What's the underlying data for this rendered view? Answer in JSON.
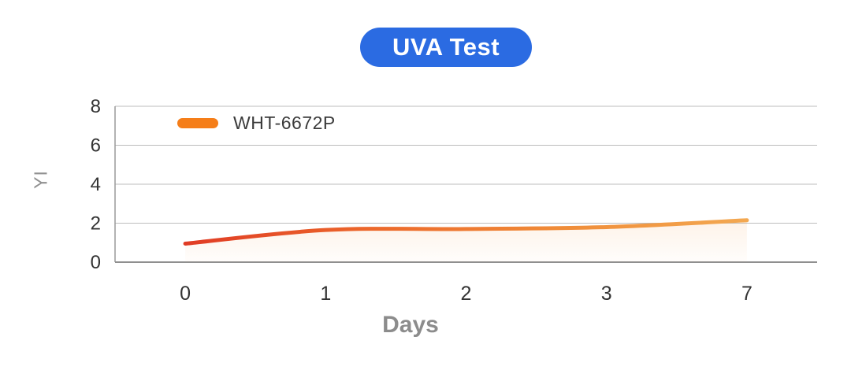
{
  "title": {
    "label": "UVA Test",
    "bg_color": "#2B6BE2",
    "text_color": "#FFFFFF"
  },
  "legend": {
    "series_label": "WHT-6672P",
    "swatch_color": "#F57E19",
    "position": "top-left-inside"
  },
  "axes": {
    "y_label": "YI",
    "x_label": "Days"
  },
  "chart_data": {
    "type": "line",
    "title": "UVA Test",
    "xlabel": "Days",
    "ylabel": "YI",
    "categories": [
      "0",
      "1",
      "2",
      "3",
      "7"
    ],
    "series": [
      {
        "name": "WHT-6672P",
        "values": [
          0.95,
          1.65,
          1.7,
          1.8,
          2.15
        ]
      }
    ],
    "ylim": [
      0,
      8
    ],
    "yticks": [
      0,
      2,
      4,
      6,
      8
    ],
    "grid": "horizontal",
    "x_axis_type": "categorical-evenly-spaced",
    "legend_position": "top-left-inside",
    "line_gradient": [
      "#E03C25",
      "#EC682B",
      "#F08C38",
      "#F3A851"
    ],
    "area_fill_color": "#F5A050"
  }
}
